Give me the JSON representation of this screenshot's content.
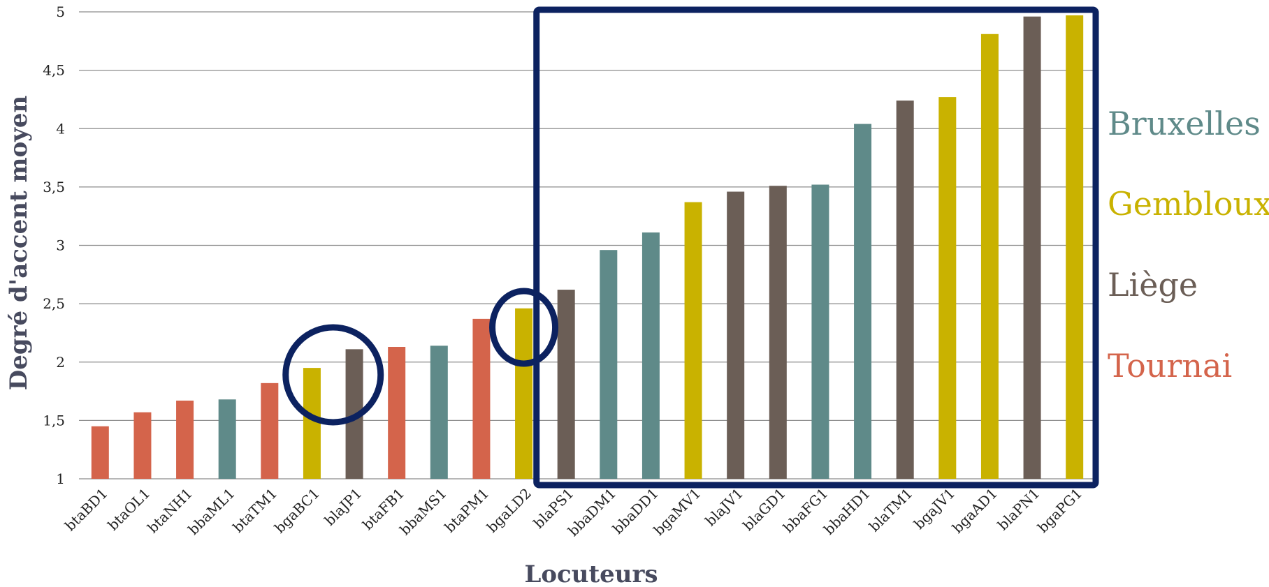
{
  "chart_data": {
    "type": "bar",
    "xlabel": "Locuteurs",
    "ylabel": "Degré d'accent moyen",
    "ylim": [
      1,
      5
    ],
    "yticks": [
      "1",
      "1,5",
      "2",
      "2,5",
      "3",
      "3,5",
      "4",
      "4,5",
      "5"
    ],
    "ytick_values": [
      1,
      1.5,
      2,
      2.5,
      3,
      3.5,
      4,
      4.5,
      5
    ],
    "grid": true,
    "legend_position": "right",
    "categories": [
      "btaBD1",
      "btaOL1",
      "btaNH1",
      "bbaML1",
      "btaTM1",
      "bgaBC1",
      "blaJP1",
      "btaFB1",
      "bbaMS1",
      "btaPM1",
      "bgaLD2",
      "blaPS1",
      "bbaDM1",
      "bbaDD1",
      "bgaMV1",
      "blaJV1",
      "blaGD1",
      "bbaFG1",
      "bbaHD1",
      "blaTM1",
      "bgaJV1",
      "bgaAD1",
      "blaPN1",
      "bgaPG1"
    ],
    "values": [
      1.45,
      1.57,
      1.67,
      1.68,
      1.82,
      1.95,
      2.11,
      2.13,
      2.14,
      2.37,
      2.46,
      2.62,
      2.96,
      3.11,
      3.37,
      3.46,
      3.51,
      3.52,
      4.04,
      4.24,
      4.27,
      4.81,
      4.96,
      4.97
    ],
    "groups": [
      "Tournai",
      "Tournai",
      "Tournai",
      "Bruxelles",
      "Tournai",
      "Gembloux",
      "Liège",
      "Tournai",
      "Bruxelles",
      "Tournai",
      "Gembloux",
      "Liège",
      "Bruxelles",
      "Bruxelles",
      "Gembloux",
      "Liège",
      "Liège",
      "Bruxelles",
      "Bruxelles",
      "Liège",
      "Gembloux",
      "Gembloux",
      "Liège",
      "Gembloux"
    ],
    "legend": [
      {
        "name": "Bruxelles",
        "color": "#5f8a89"
      },
      {
        "name": "Gembloux",
        "color": "#c9b200"
      },
      {
        "name": "Liège",
        "color": "#6b5e56"
      },
      {
        "name": "Tournai",
        "color": "#d4644b"
      }
    ],
    "annotations": {
      "highlight_color": "#0c2260",
      "circled_categories": [
        "bgaBC1",
        "blaJP1",
        "bgaLD2"
      ],
      "boxed_range": [
        "blaPS1",
        "bgaPG1"
      ]
    }
  }
}
